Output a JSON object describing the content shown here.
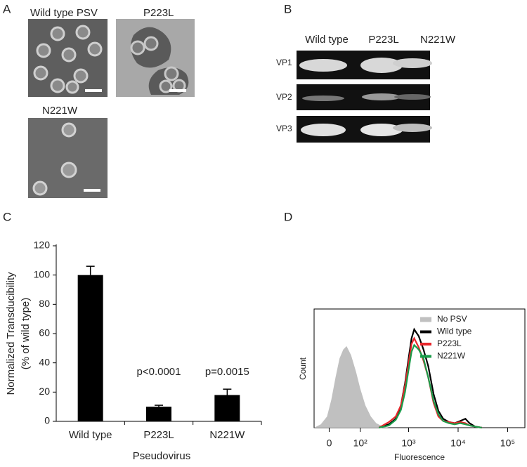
{
  "panels": {
    "A": {
      "label": "A",
      "images": [
        "Wild type PSV",
        "P223L",
        "N221W"
      ]
    },
    "B": {
      "label": "B",
      "lanes": [
        "Wild type",
        "P223L",
        "N221W"
      ],
      "proteins": [
        "VP1",
        "VP2",
        "VP3"
      ]
    },
    "C": {
      "label": "C"
    },
    "D": {
      "label": "D"
    }
  },
  "chart_data": [
    {
      "type": "bar",
      "categories": [
        "Wild type",
        "P223L",
        "N221W"
      ],
      "values": [
        100,
        10,
        18
      ],
      "errors": [
        6,
        1,
        4
      ],
      "color": "#000000",
      "annotations": [
        null,
        "p<0.0001",
        "p=0.0015"
      ],
      "ylabel": [
        "Normalized Transducibility",
        "(% of wild type)"
      ],
      "xlabel": "Pseudovirus",
      "ylim": [
        0,
        120
      ],
      "yticks": [
        0,
        20,
        40,
        60,
        80,
        100,
        120
      ]
    },
    {
      "type": "line",
      "xlabel": "Fluorescence",
      "ylabel": "Count",
      "xscale": "asinh",
      "asinh_width": 50,
      "xlim": [
        -38,
        230000
      ],
      "ylim": [
        0,
        100
      ],
      "xticks": [
        0,
        {
          "value": 100,
          "label": "10²"
        },
        {
          "value": 1000,
          "label": "10³"
        },
        {
          "value": 10000,
          "label": "10⁴"
        },
        {
          "value": 100000,
          "label": "10⁵"
        }
      ],
      "legend": "upper right",
      "series": [
        {
          "name": "No PSV",
          "color": "#c0c0c0",
          "filled": true,
          "x": [
            -38,
            -20,
            -5,
            5,
            15,
            25,
            35,
            45,
            60,
            80,
            100,
            130,
            170,
            220,
            300,
            400
          ],
          "values": [
            0,
            3,
            10,
            25,
            45,
            62,
            70,
            73,
            65,
            50,
            35,
            20,
            10,
            4,
            1,
            0
          ]
        },
        {
          "name": "Wild type",
          "color": "#000000",
          "x": [
            250,
            400,
            550,
            700,
            850,
            1000,
            1150,
            1300,
            1600,
            2000,
            2500,
            3200,
            4000,
            5000,
            6500,
            8500,
            11000,
            14000,
            17000,
            22000,
            30000
          ],
          "values": [
            0,
            3,
            8,
            20,
            40,
            62,
            80,
            88,
            82,
            70,
            55,
            30,
            15,
            8,
            5,
            4,
            6,
            8,
            4,
            1,
            0
          ]
        },
        {
          "name": "P223L",
          "color": "#e8252a",
          "x": [
            250,
            400,
            550,
            700,
            850,
            1000,
            1150,
            1300,
            1600,
            2000,
            2500,
            3200,
            4000,
            5000,
            6500,
            8500,
            11000,
            14000,
            17000,
            22000,
            30000
          ],
          "values": [
            0,
            5,
            10,
            20,
            38,
            58,
            75,
            80,
            72,
            60,
            45,
            22,
            10,
            6,
            5,
            4,
            5,
            4,
            2,
            1,
            0
          ]
        },
        {
          "name": "N221W",
          "color": "#1a9c4a",
          "x": [
            250,
            400,
            550,
            700,
            850,
            1000,
            1150,
            1300,
            1600,
            2000,
            2500,
            3200,
            4000,
            5000,
            6500,
            8500,
            11000,
            14000,
            17000,
            22000,
            30000
          ],
          "values": [
            0,
            2,
            7,
            16,
            32,
            52,
            68,
            74,
            70,
            62,
            45,
            24,
            12,
            6,
            4,
            3,
            4,
            3,
            2,
            1,
            0
          ]
        }
      ]
    }
  ]
}
